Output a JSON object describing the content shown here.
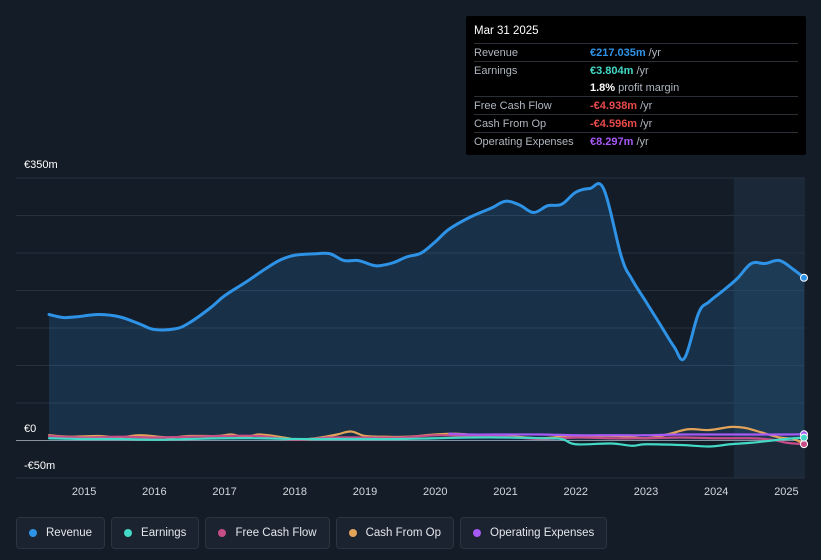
{
  "tooltip": {
    "date": "Mar 31 2025",
    "rows": [
      {
        "label": "Revenue",
        "value": "€217.035m",
        "unit": "/yr",
        "color": "#2e93e6"
      },
      {
        "label": "Earnings",
        "value": "€3.804m",
        "unit": "/yr",
        "color": "#43d9c6"
      },
      {
        "label": "",
        "value": "1.8%",
        "unit": "profit margin",
        "color": "#ffffff"
      },
      {
        "label": "Free Cash Flow",
        "value": "-€4.938m",
        "unit": "/yr",
        "color": "#e84a4a"
      },
      {
        "label": "Cash From Op",
        "value": "-€4.596m",
        "unit": "/yr",
        "color": "#e84a4a"
      },
      {
        "label": "Operating Expenses",
        "value": "€8.297m",
        "unit": "/yr",
        "color": "#a659f5"
      }
    ]
  },
  "axes": {
    "y_top_label": "€350m",
    "y_zero_label": "€0",
    "y_bottom_label": "-€50m"
  },
  "legend": [
    {
      "label": "Revenue",
      "color": "#2e93e6"
    },
    {
      "label": "Earnings",
      "color": "#43d9c6"
    },
    {
      "label": "Free Cash Flow",
      "color": "#c64d86"
    },
    {
      "label": "Cash From Op",
      "color": "#e3a45a"
    },
    {
      "label": "Operating Expenses",
      "color": "#a659f5"
    }
  ],
  "chart_data": {
    "type": "area",
    "title": "",
    "xlabel": "",
    "ylabel": "",
    "x_ticks": [
      "2015",
      "2016",
      "2017",
      "2018",
      "2019",
      "2020",
      "2021",
      "2022",
      "2023",
      "2024",
      "2025"
    ],
    "ylim": [
      -50,
      350
    ],
    "x_range": [
      2014.5,
      2025.25
    ],
    "highlight_start": 2024.25,
    "series": [
      {
        "name": "Revenue",
        "color": "#2e93e6",
        "area": true,
        "x": [
          2014.5,
          2014.7,
          2014.9,
          2015.2,
          2015.5,
          2015.8,
          2016.0,
          2016.3,
          2016.5,
          2016.8,
          2017.0,
          2017.3,
          2017.6,
          2017.8,
          2018.0,
          2018.3,
          2018.5,
          2018.7,
          2018.9,
          2019.1,
          2019.2,
          2019.4,
          2019.6,
          2019.8,
          2020.0,
          2020.2,
          2020.5,
          2020.8,
          2021.0,
          2021.2,
          2021.4,
          2021.6,
          2021.8,
          2022.0,
          2022.2,
          2022.4,
          2022.65,
          2022.8,
          2023.0,
          2023.2,
          2023.4,
          2023.55,
          2023.75,
          2023.9,
          2024.1,
          2024.3,
          2024.5,
          2024.7,
          2024.9,
          2025.1,
          2025.25
        ],
        "values": [
          168,
          164,
          165,
          168,
          165,
          155,
          148,
          149,
          157,
          177,
          193,
          211,
          230,
          241,
          247,
          249,
          249,
          240,
          240,
          234,
          233,
          237,
          245,
          250,
          265,
          282,
          298,
          310,
          319,
          314,
          304,
          313,
          315,
          331,
          336,
          335,
          245,
          215,
          185,
          155,
          125,
          110,
          170,
          185,
          200,
          216,
          236,
          236,
          240,
          228,
          217
        ]
      },
      {
        "name": "Earnings",
        "color": "#43d9c6",
        "area": false,
        "x": [
          2014.5,
          2015.0,
          2015.5,
          2016.0,
          2016.5,
          2017.0,
          2017.5,
          2018.0,
          2018.5,
          2019.0,
          2019.5,
          2020.0,
          2020.5,
          2021.0,
          2021.5,
          2021.8,
          2022.0,
          2022.5,
          2022.8,
          2023.0,
          2023.5,
          2023.9,
          2024.2,
          2024.5,
          2024.8,
          2025.1,
          2025.25
        ],
        "values": [
          3,
          2,
          2,
          1,
          2,
          3,
          3,
          2,
          2,
          2,
          2,
          3,
          4,
          4,
          3,
          2,
          -5,
          -4,
          -7,
          -5,
          -6,
          -8,
          -5,
          -3,
          0,
          3,
          3.8
        ]
      },
      {
        "name": "Free Cash Flow",
        "color": "#c64d86",
        "area": false,
        "x": [
          2014.5,
          2015.0,
          2015.5,
          2016.0,
          2016.5,
          2017.0,
          2017.5,
          2018.0,
          2018.5,
          2019.0,
          2019.5,
          2020.0,
          2020.5,
          2021.0,
          2021.5,
          2022.0,
          2022.5,
          2023.0,
          2023.5,
          2024.0,
          2024.5,
          2024.8,
          2025.0,
          2025.25
        ],
        "values": [
          6,
          4,
          5,
          4,
          5,
          6,
          6,
          1,
          4,
          4,
          4,
          7,
          6,
          5,
          2,
          4,
          3,
          3,
          4,
          3,
          3,
          1,
          -3,
          -4.9
        ]
      },
      {
        "name": "Cash From Op",
        "color": "#e3a45a",
        "area": false,
        "x": [
          2014.5,
          2014.8,
          2015.2,
          2015.5,
          2015.8,
          2016.2,
          2016.5,
          2016.9,
          2017.1,
          2017.3,
          2017.5,
          2017.9,
          2018.0,
          2018.3,
          2018.6,
          2018.8,
          2019.0,
          2019.3,
          2019.6,
          2020.0,
          2020.3,
          2020.6,
          2021.0,
          2021.5,
          2021.8,
          2022.2,
          2022.6,
          2023.0,
          2023.3,
          2023.6,
          2023.9,
          2024.2,
          2024.4,
          2024.6,
          2024.9,
          2025.1,
          2025.25
        ],
        "values": [
          7,
          5,
          6,
          4,
          7,
          4,
          6,
          6,
          8,
          4,
          8,
          3,
          1,
          3,
          8,
          12,
          6,
          5,
          5,
          8,
          9,
          7,
          6,
          3,
          5,
          6,
          6,
          3,
          8,
          15,
          14,
          18,
          17,
          12,
          4,
          2,
          -4.6
        ]
      },
      {
        "name": "Operating Expenses",
        "color": "#a659f5",
        "area": false,
        "x": [
          2020.2,
          2020.5,
          2021.0,
          2021.5,
          2022.0,
          2022.5,
          2023.0,
          2023.5,
          2024.0,
          2024.5,
          2025.0,
          2025.25
        ],
        "values": [
          9,
          8,
          8,
          8,
          7,
          7,
          7,
          8,
          8,
          8,
          8,
          8.3
        ]
      }
    ]
  }
}
